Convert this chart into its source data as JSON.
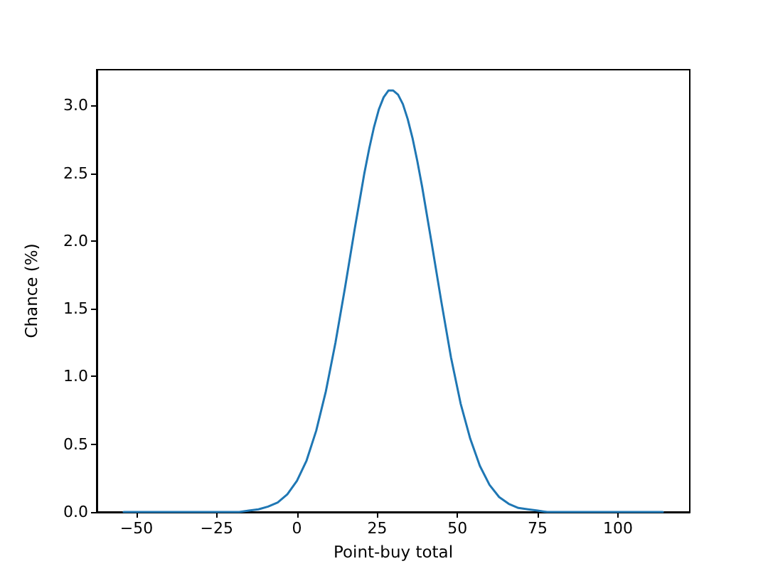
{
  "chart_data": {
    "type": "line",
    "xlabel": "Point-buy total",
    "ylabel": "Chance (%)",
    "x": [
      -54,
      -45,
      -36,
      -30,
      -24,
      -18,
      -15,
      -12,
      -9,
      -6,
      -3,
      0,
      3,
      6,
      9,
      12,
      15,
      18,
      21,
      22.5,
      24,
      25.5,
      27,
      28.5,
      30,
      31.5,
      33,
      34.5,
      36,
      37.5,
      39,
      42,
      45,
      48,
      51,
      54,
      57,
      60,
      63,
      66,
      69,
      72,
      75,
      78,
      84,
      90,
      100,
      114
    ],
    "series": [
      {
        "color": "#1f77b4",
        "values": [
          0,
          0,
          0,
          0,
          0,
          0,
          0.01,
          0.02,
          0.04,
          0.07,
          0.13,
          0.23,
          0.38,
          0.6,
          0.89,
          1.25,
          1.66,
          2.09,
          2.5,
          2.68,
          2.84,
          2.97,
          3.06,
          3.11,
          3.11,
          3.08,
          3.01,
          2.9,
          2.76,
          2.59,
          2.4,
          1.98,
          1.55,
          1.14,
          0.8,
          0.54,
          0.34,
          0.2,
          0.11,
          0.06,
          0.03,
          0.02,
          0.01,
          0,
          0,
          0,
          0,
          0
        ]
      }
    ],
    "xlim": [
      -62.4,
      122.4
    ],
    "xticks": [
      {
        "value": -50,
        "label": "−50"
      },
      {
        "value": -25,
        "label": "−25"
      },
      0,
      25,
      50,
      75,
      100
    ],
    "ylim": [
      0,
      3.264
    ],
    "yticks": [
      {
        "value": 0,
        "label": "0.0"
      },
      0.5,
      {
        "value": 1,
        "label": "1.0"
      },
      1.5,
      {
        "value": 2,
        "label": "2.0"
      },
      2.5,
      {
        "value": 3,
        "label": "3.0"
      }
    ],
    "grid": false,
    "marker": "none",
    "line_style": "solid"
  }
}
